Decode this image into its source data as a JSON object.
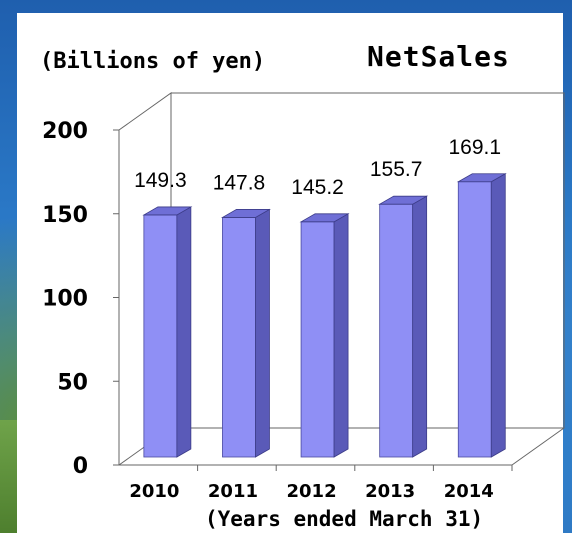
{
  "chart_data": {
    "type": "bar",
    "title": "NetSales",
    "unit_label": "(Billions of yen)",
    "xlabel": "(Years ended March 31)",
    "ylabel": "",
    "categories": [
      "2010",
      "2011",
      "2012",
      "2013",
      "2014"
    ],
    "values": [
      149.3,
      147.8,
      145.2,
      155.7,
      169.1
    ],
    "value_labels": [
      "149.3",
      "147.8",
      "145.2",
      "155.7",
      "169.1"
    ],
    "yticks": [
      "0",
      "50",
      "100",
      "150",
      "200"
    ],
    "ylim": [
      0,
      200
    ],
    "grid": false,
    "style": "3d",
    "colors": {
      "bar_front": "#8f8ff5",
      "bar_side": "#5a5ab8",
      "bar_top": "#6f6fd6"
    }
  }
}
